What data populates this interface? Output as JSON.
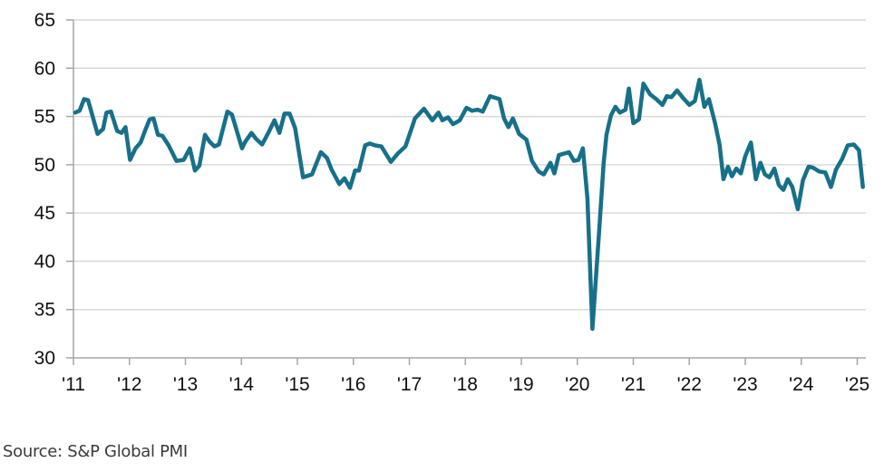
{
  "chart_data": {
    "type": "line",
    "title": "",
    "xlabel": "",
    "ylabel": "",
    "ylim": [
      30,
      65
    ],
    "xlim": [
      2011,
      2025.1
    ],
    "yticks": [
      "30",
      "35",
      "40",
      "45",
      "50",
      "55",
      "60",
      "65"
    ],
    "xtick_labels": [
      "'11",
      "'12",
      "'13",
      "'14",
      "'15",
      "'16",
      "'17",
      "'18",
      "'19",
      "'20",
      "'21",
      "'22",
      "'23",
      "'24",
      "'25"
    ],
    "grid": "horizontal",
    "line_color": "#17708a",
    "series": [
      {
        "points": [
          [
            2011.03,
            55.4
          ],
          [
            2011.11,
            55.6
          ],
          [
            2011.19,
            56.8
          ],
          [
            2011.26,
            56.7
          ],
          [
            2011.43,
            53.2
          ],
          [
            2011.53,
            53.7
          ],
          [
            2011.59,
            55.4
          ],
          [
            2011.67,
            55.5
          ],
          [
            2011.78,
            53.5
          ],
          [
            2011.86,
            53.3
          ],
          [
            2011.93,
            53.9
          ],
          [
            2012.01,
            50.5
          ],
          [
            2012.11,
            51.7
          ],
          [
            2012.2,
            52.3
          ],
          [
            2012.29,
            53.7
          ],
          [
            2012.36,
            54.7
          ],
          [
            2012.43,
            54.8
          ],
          [
            2012.51,
            53.1
          ],
          [
            2012.59,
            53.0
          ],
          [
            2012.7,
            52.0
          ],
          [
            2012.84,
            50.4
          ],
          [
            2012.97,
            50.5
          ],
          [
            2013.08,
            51.7
          ],
          [
            2013.17,
            49.4
          ],
          [
            2013.25,
            49.9
          ],
          [
            2013.35,
            53.1
          ],
          [
            2013.43,
            52.4
          ],
          [
            2013.52,
            51.9
          ],
          [
            2013.6,
            52.1
          ],
          [
            2013.75,
            55.5
          ],
          [
            2013.83,
            55.2
          ],
          [
            2014.01,
            51.7
          ],
          [
            2014.07,
            52.4
          ],
          [
            2014.18,
            53.3
          ],
          [
            2014.26,
            52.7
          ],
          [
            2014.37,
            52.1
          ],
          [
            2014.48,
            53.3
          ],
          [
            2014.59,
            54.6
          ],
          [
            2014.68,
            53.3
          ],
          [
            2014.77,
            55.3
          ],
          [
            2014.86,
            55.3
          ],
          [
            2014.96,
            53.8
          ],
          [
            2015.1,
            48.7
          ],
          [
            2015.26,
            49.0
          ],
          [
            2015.42,
            51.3
          ],
          [
            2015.53,
            50.7
          ],
          [
            2015.61,
            49.5
          ],
          [
            2015.75,
            48.0
          ],
          [
            2015.84,
            48.6
          ],
          [
            2015.94,
            47.6
          ],
          [
            2016.03,
            49.4
          ],
          [
            2016.1,
            49.4
          ],
          [
            2016.21,
            52.0
          ],
          [
            2016.29,
            52.2
          ],
          [
            2016.39,
            52.0
          ],
          [
            2016.5,
            51.9
          ],
          [
            2016.67,
            50.3
          ],
          [
            2016.8,
            51.2
          ],
          [
            2016.93,
            51.9
          ],
          [
            2017.1,
            54.8
          ],
          [
            2017.26,
            55.8
          ],
          [
            2017.41,
            54.6
          ],
          [
            2017.52,
            55.4
          ],
          [
            2017.59,
            54.6
          ],
          [
            2017.69,
            54.9
          ],
          [
            2017.78,
            54.2
          ],
          [
            2017.9,
            54.6
          ],
          [
            2018.02,
            55.9
          ],
          [
            2018.12,
            55.6
          ],
          [
            2018.22,
            55.7
          ],
          [
            2018.31,
            55.5
          ],
          [
            2018.44,
            57.1
          ],
          [
            2018.61,
            56.8
          ],
          [
            2018.69,
            54.8
          ],
          [
            2018.77,
            53.9
          ],
          [
            2018.85,
            54.8
          ],
          [
            2018.96,
            53.2
          ],
          [
            2019.09,
            52.6
          ],
          [
            2019.19,
            50.4
          ],
          [
            2019.31,
            49.3
          ],
          [
            2019.4,
            49.0
          ],
          [
            2019.52,
            50.2
          ],
          [
            2019.59,
            49.1
          ],
          [
            2019.67,
            51.0
          ],
          [
            2019.85,
            51.3
          ],
          [
            2019.94,
            50.4
          ],
          [
            2020.02,
            50.5
          ],
          [
            2020.1,
            51.7
          ],
          [
            2020.18,
            46.5
          ],
          [
            2020.27,
            33.0
          ],
          [
            2020.39,
            43.1
          ],
          [
            2020.47,
            50.2
          ],
          [
            2020.52,
            53.1
          ],
          [
            2020.6,
            55.1
          ],
          [
            2020.68,
            56.0
          ],
          [
            2020.76,
            55.4
          ],
          [
            2020.86,
            55.7
          ],
          [
            2020.92,
            57.9
          ],
          [
            2021.0,
            54.3
          ],
          [
            2021.1,
            54.7
          ],
          [
            2021.18,
            58.4
          ],
          [
            2021.3,
            57.3
          ],
          [
            2021.41,
            56.8
          ],
          [
            2021.52,
            56.2
          ],
          [
            2021.6,
            57.1
          ],
          [
            2021.68,
            57.0
          ],
          [
            2021.78,
            57.7
          ],
          [
            2021.89,
            56.9
          ],
          [
            2022.0,
            56.2
          ],
          [
            2022.1,
            56.6
          ],
          [
            2022.18,
            58.8
          ],
          [
            2022.27,
            56.0
          ],
          [
            2022.35,
            56.8
          ],
          [
            2022.46,
            54.3
          ],
          [
            2022.54,
            52.1
          ],
          [
            2022.61,
            48.5
          ],
          [
            2022.69,
            49.8
          ],
          [
            2022.76,
            48.8
          ],
          [
            2022.84,
            49.6
          ],
          [
            2022.92,
            49.1
          ],
          [
            2023.0,
            50.9
          ],
          [
            2023.1,
            52.3
          ],
          [
            2023.19,
            48.5
          ],
          [
            2023.27,
            50.2
          ],
          [
            2023.35,
            49.0
          ],
          [
            2023.43,
            48.7
          ],
          [
            2023.52,
            49.6
          ],
          [
            2023.6,
            47.9
          ],
          [
            2023.68,
            47.4
          ],
          [
            2023.76,
            48.5
          ],
          [
            2023.84,
            47.7
          ],
          [
            2023.94,
            45.4
          ],
          [
            2024.03,
            48.4
          ],
          [
            2024.13,
            49.8
          ],
          [
            2024.21,
            49.7
          ],
          [
            2024.32,
            49.3
          ],
          [
            2024.43,
            49.2
          ],
          [
            2024.53,
            47.7
          ],
          [
            2024.62,
            49.5
          ],
          [
            2024.73,
            50.6
          ],
          [
            2024.83,
            52.0
          ],
          [
            2024.94,
            52.1
          ],
          [
            2025.03,
            51.5
          ],
          [
            2025.1,
            47.7
          ]
        ]
      }
    ]
  },
  "source": "Source: S&P Global PMI"
}
